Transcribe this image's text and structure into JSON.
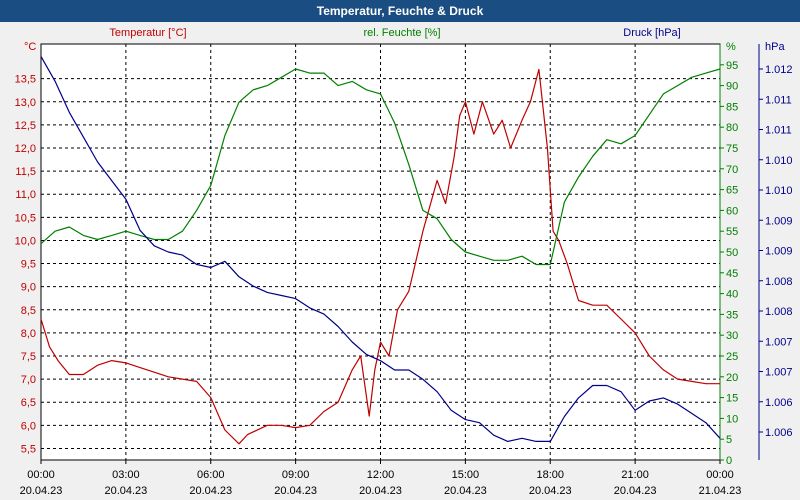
{
  "window": {
    "title": "Temperatur, Feuchte & Druck"
  },
  "colors": {
    "temp": "#c00000",
    "hum": "#008000",
    "press": "#00008b",
    "grid": "#000000",
    "bg": "#f2f2f2",
    "title_bg": "#1a4e82"
  },
  "chart_data": {
    "type": "line",
    "title": "Temperatur, Feuchte & Druck",
    "x_ticks": [
      {
        "time": "00:00",
        "date": "20.04.23"
      },
      {
        "time": "03:00",
        "date": "20.04.23"
      },
      {
        "time": "06:00",
        "date": "20.04.23"
      },
      {
        "time": "09:00",
        "date": "20.04.23"
      },
      {
        "time": "12:00",
        "date": "20.04.23"
      },
      {
        "time": "15:00",
        "date": "20.04.23"
      },
      {
        "time": "18:00",
        "date": "20.04.23"
      },
      {
        "time": "21:00",
        "date": "20.04.23"
      },
      {
        "time": "00:00",
        "date": "21.04.23"
      }
    ],
    "xlim": [
      0,
      24
    ],
    "axes": {
      "temp": {
        "unit": "°C",
        "label": "Temperatur [°C]",
        "ylim": [
          5.25,
          14.25
        ],
        "ticks": [
          "5,5",
          "6,0",
          "6,5",
          "7,0",
          "7,5",
          "8,0",
          "8,5",
          "9,0",
          "9,5",
          "10,0",
          "10,5",
          "11,0",
          "11,5",
          "12,0",
          "12,5",
          "13,0",
          "13,5"
        ]
      },
      "hum": {
        "unit": "%",
        "label": "rel. Feuchte [%]",
        "ylim": [
          0,
          100
        ],
        "ticks": [
          "0",
          "5",
          "10",
          "15",
          "20",
          "25",
          "30",
          "35",
          "40",
          "45",
          "50",
          "55",
          "60",
          "65",
          "70",
          "75",
          "80",
          "85",
          "90",
          "95"
        ]
      },
      "press": {
        "unit": "hPa",
        "label": "Druck [hPa]",
        "ylim": [
          1005.6,
          1012.3
        ],
        "ticks": [
          "1.006",
          "1.006",
          "1.007",
          "1.007",
          "1.008",
          "1.008",
          "1.009",
          "1.009",
          "1.010",
          "1.010",
          "1.011",
          "1.011",
          "1.012"
        ]
      }
    },
    "series": [
      {
        "name": "Temperatur [°C]",
        "axis": "temp",
        "x": [
          0,
          0.3,
          0.6,
          1,
          1.5,
          2,
          2.5,
          3,
          3.5,
          4,
          4.5,
          5,
          5.5,
          6,
          6.5,
          7,
          7.3,
          8,
          8.5,
          9,
          9.5,
          10,
          10.5,
          11,
          11.3,
          11.6,
          11.8,
          12,
          12.3,
          12.6,
          13,
          13.5,
          14,
          14.3,
          14.6,
          14.8,
          15,
          15.3,
          15.6,
          16,
          16.3,
          16.6,
          17,
          17.3,
          17.6,
          17.9,
          18.1,
          18.3,
          18.6,
          19,
          19.5,
          20,
          20.5,
          21,
          21.5,
          22,
          22.5,
          23,
          23.5,
          24
        ],
        "values": [
          8.3,
          7.7,
          7.4,
          7.1,
          7.1,
          7.3,
          7.4,
          7.35,
          7.25,
          7.15,
          7.05,
          7.0,
          6.95,
          6.6,
          5.9,
          5.6,
          5.8,
          6.0,
          6.0,
          5.95,
          6.0,
          6.3,
          6.5,
          7.2,
          7.5,
          6.2,
          7.2,
          7.8,
          7.5,
          8.5,
          8.9,
          10.2,
          11.3,
          10.8,
          11.8,
          12.7,
          13.0,
          12.3,
          13.0,
          12.3,
          12.6,
          12.0,
          12.6,
          13.0,
          13.7,
          12.0,
          10.2,
          10.0,
          9.5,
          8.7,
          8.6,
          8.6,
          8.3,
          8.0,
          7.5,
          7.2,
          7.0,
          6.95,
          6.9,
          6.9
        ]
      },
      {
        "name": "rel. Feuchte [%]",
        "axis": "hum",
        "x": [
          0,
          0.5,
          1,
          1.5,
          2,
          2.5,
          3,
          3.5,
          4,
          4.5,
          5,
          5.5,
          6,
          6.5,
          7,
          7.5,
          8,
          8.5,
          9,
          9.5,
          10,
          10.5,
          11,
          11.5,
          12,
          12.5,
          13,
          13.5,
          14,
          14.5,
          15,
          15.5,
          16,
          16.5,
          17,
          17.5,
          18,
          18.5,
          19,
          19.5,
          20,
          20.5,
          21,
          21.5,
          22,
          22.5,
          23,
          23.5,
          24
        ],
        "values": [
          52,
          55,
          56,
          54,
          53,
          54,
          55,
          54,
          53,
          53,
          55,
          60,
          66,
          78,
          86,
          89,
          90,
          92,
          94,
          93,
          93,
          90,
          91,
          89,
          88,
          81,
          71,
          60,
          58,
          53,
          50,
          49,
          48,
          48,
          49,
          47,
          47,
          62,
          68,
          73,
          77,
          76,
          78,
          83,
          88,
          90,
          92,
          93,
          94
        ]
      },
      {
        "name": "Druck [hPa]",
        "axis": "press",
        "x": [
          0,
          0.5,
          1,
          1.5,
          2,
          2.5,
          3,
          3.5,
          4,
          4.5,
          5,
          5.5,
          6,
          6.5,
          7,
          7.5,
          8,
          8.5,
          9,
          9.5,
          10,
          10.5,
          11,
          11.5,
          12,
          12.5,
          13,
          13.5,
          14,
          14.5,
          15,
          15.5,
          16,
          16.5,
          17,
          17.5,
          18,
          18.5,
          19,
          19.5,
          20,
          20.5,
          21,
          21.5,
          22,
          22.5,
          23,
          23.5,
          24
        ],
        "values": [
          1012.1,
          1011.7,
          1011.2,
          1010.8,
          1010.4,
          1010.1,
          1009.8,
          1009.3,
          1009.05,
          1008.95,
          1008.9,
          1008.75,
          1008.7,
          1008.8,
          1008.55,
          1008.4,
          1008.3,
          1008.25,
          1008.2,
          1008.05,
          1007.95,
          1007.75,
          1007.5,
          1007.3,
          1007.2,
          1007.05,
          1007.05,
          1006.9,
          1006.7,
          1006.4,
          1006.25,
          1006.2,
          1006.0,
          1005.9,
          1005.95,
          1005.9,
          1005.9,
          1006.3,
          1006.6,
          1006.8,
          1006.8,
          1006.7,
          1006.4,
          1006.55,
          1006.6,
          1006.5,
          1006.35,
          1006.2,
          1005.95
        ]
      }
    ]
  }
}
